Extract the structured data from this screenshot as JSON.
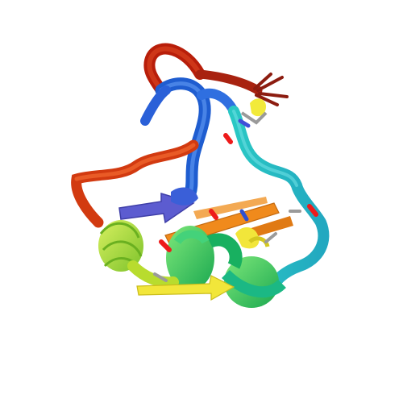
{
  "image": {
    "subject": "protein-structure-ensemble",
    "style": "ribbon-cartoon-rainbow",
    "background": "#ffffff",
    "colors": {
      "red": "#c0250a",
      "orange_red": "#e8501a",
      "orange": "#f08a1c",
      "blue": "#2f6fe0",
      "violet": "#6a6ad8",
      "cyan": "#22b6c8",
      "teal": "#1fc0b0",
      "green": "#2fd070",
      "lime": "#9ad83a",
      "yellow_green": "#c8e030",
      "yellow": "#f2e63a",
      "grey": "#9a9a9a",
      "hetero_red": "#ee1b1b"
    }
  }
}
